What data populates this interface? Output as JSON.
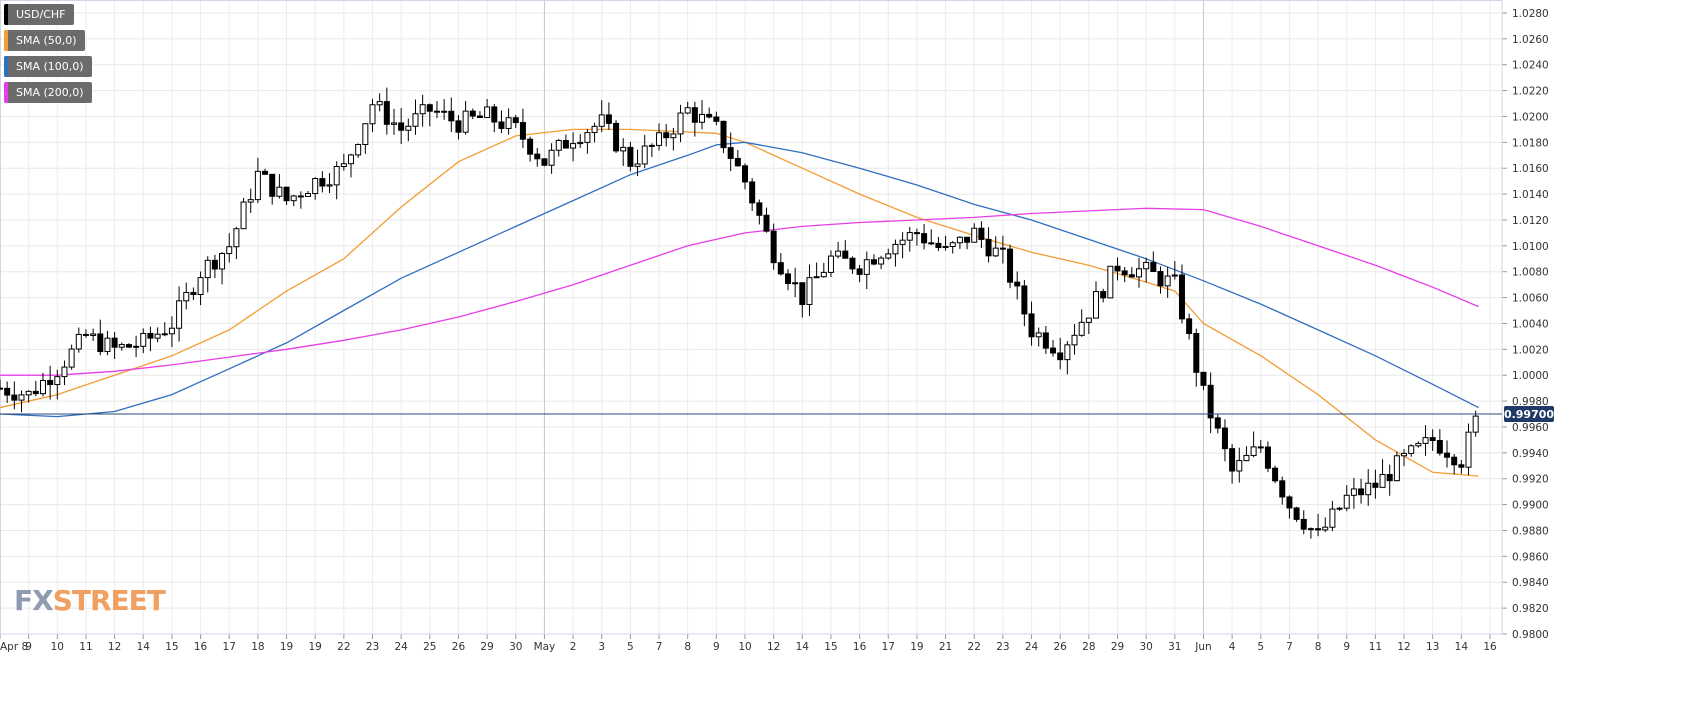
{
  "legend": [
    {
      "label": "USD/CHF",
      "color": "#000000"
    },
    {
      "label": "SMA (50,0)",
      "color": "#f39c33"
    },
    {
      "label": "SMA (100,0)",
      "color": "#2f6fc0"
    },
    {
      "label": "SMA (200,0)",
      "color": "#e83de8"
    }
  ],
  "brand": {
    "part1": "FX",
    "part2": "STREET"
  },
  "chart_data": {
    "type": "candlestick",
    "symbol": "USD/CHF",
    "ylim": [
      0.98,
      1.029
    ],
    "y_ticks": [
      "1.0280",
      "1.0260",
      "1.0240",
      "1.0220",
      "1.0200",
      "1.0180",
      "1.0160",
      "1.0140",
      "1.0120",
      "1.0100",
      "1.0080",
      "1.0060",
      "1.0040",
      "1.0020",
      "1.0000",
      "0.9980",
      "0.9960",
      "0.9940",
      "0.9920",
      "0.9900",
      "0.9880",
      "0.9860",
      "0.9840",
      "0.9820",
      "0.9800"
    ],
    "x_ticks": [
      {
        "label": "Apr 8",
        "i": 0
      },
      {
        "label": "9",
        "i": 1
      },
      {
        "label": "10",
        "i": 2
      },
      {
        "label": "11",
        "i": 3
      },
      {
        "label": "12",
        "i": 4
      },
      {
        "label": "14",
        "i": 5
      },
      {
        "label": "15",
        "i": 6
      },
      {
        "label": "16",
        "i": 7
      },
      {
        "label": "17",
        "i": 8
      },
      {
        "label": "18",
        "i": 9
      },
      {
        "label": "19",
        "i": 10
      },
      {
        "label": "19",
        "i": 11
      },
      {
        "label": "22",
        "i": 12
      },
      {
        "label": "23",
        "i": 13
      },
      {
        "label": "24",
        "i": 14
      },
      {
        "label": "25",
        "i": 15
      },
      {
        "label": "26",
        "i": 16
      },
      {
        "label": "29",
        "i": 17
      },
      {
        "label": "30",
        "i": 18
      },
      {
        "label": "May",
        "i": 19
      },
      {
        "label": "2",
        "i": 20
      },
      {
        "label": "3",
        "i": 21
      },
      {
        "label": "5",
        "i": 22
      },
      {
        "label": "7",
        "i": 23
      },
      {
        "label": "8",
        "i": 24
      },
      {
        "label": "9",
        "i": 25
      },
      {
        "label": "10",
        "i": 26
      },
      {
        "label": "12",
        "i": 27
      },
      {
        "label": "14",
        "i": 28
      },
      {
        "label": "15",
        "i": 29
      },
      {
        "label": "16",
        "i": 30
      },
      {
        "label": "17",
        "i": 31
      },
      {
        "label": "19",
        "i": 32
      },
      {
        "label": "21",
        "i": 33
      },
      {
        "label": "22",
        "i": 34
      },
      {
        "label": "23",
        "i": 35
      },
      {
        "label": "24",
        "i": 36
      },
      {
        "label": "26",
        "i": 37
      },
      {
        "label": "28",
        "i": 38
      },
      {
        "label": "29",
        "i": 39
      },
      {
        "label": "30",
        "i": 40
      },
      {
        "label": "31",
        "i": 41
      },
      {
        "label": "Jun",
        "i": 42
      },
      {
        "label": "4",
        "i": 43
      },
      {
        "label": "5",
        "i": 44
      },
      {
        "label": "7",
        "i": 45
      },
      {
        "label": "8",
        "i": 46
      },
      {
        "label": "9",
        "i": 47
      },
      {
        "label": "11",
        "i": 48
      },
      {
        "label": "12",
        "i": 49
      },
      {
        "label": "13",
        "i": 50
      },
      {
        "label": "14",
        "i": 51
      },
      {
        "label": "16",
        "i": 52
      }
    ],
    "major_gridline_ticks": [
      19,
      42
    ],
    "current_price": {
      "label": "0.99700",
      "value": 0.997
    },
    "price_path": [
      [
        0,
        0.999
      ],
      [
        1,
        0.9985
      ],
      [
        2,
        1.0005
      ],
      [
        3,
        1.003
      ],
      [
        4,
        1.002
      ],
      [
        5,
        1.0025
      ],
      [
        6,
        1.004
      ],
      [
        7,
        1.008
      ],
      [
        8,
        1.01
      ],
      [
        9,
        1.0155
      ],
      [
        10,
        1.0135
      ],
      [
        11,
        1.015
      ],
      [
        12,
        1.016
      ],
      [
        13,
        1.021
      ],
      [
        14,
        1.019
      ],
      [
        15,
        1.0205
      ],
      [
        16,
        1.0195
      ],
      [
        17,
        1.02
      ],
      [
        18,
        1.019
      ],
      [
        19,
        1.0165
      ],
      [
        20,
        1.0185
      ],
      [
        21,
        1.0195
      ],
      [
        22,
        1.0165
      ],
      [
        23,
        1.018
      ],
      [
        24,
        1.0205
      ],
      [
        25,
        1.019
      ],
      [
        26,
        1.015
      ],
      [
        27,
        1.0095
      ],
      [
        28,
        1.006
      ],
      [
        29,
        1.009
      ],
      [
        30,
        1.0085
      ],
      [
        31,
        1.01
      ],
      [
        32,
        1.011
      ],
      [
        33,
        1.0095
      ],
      [
        34,
        1.011
      ],
      [
        35,
        1.009
      ],
      [
        36,
        1.0035
      ],
      [
        37,
        1.002
      ],
      [
        38,
        1.005
      ],
      [
        39,
        1.0085
      ],
      [
        40,
        1.008
      ],
      [
        41,
        1.007
      ],
      [
        42,
        0.9985
      ],
      [
        43,
        0.9925
      ],
      [
        44,
        0.9945
      ],
      [
        45,
        0.99
      ],
      [
        46,
        0.9875
      ],
      [
        47,
        0.9905
      ],
      [
        48,
        0.9915
      ],
      [
        49,
        0.9935
      ],
      [
        50,
        0.995
      ],
      [
        51,
        0.9935
      ],
      [
        51.6,
        0.997
      ]
    ],
    "series": [
      {
        "name": "SMA (50,0)",
        "color": "#f39c33",
        "points": [
          [
            0,
            0.9975
          ],
          [
            2,
            0.9985
          ],
          [
            4,
            1.0
          ],
          [
            6,
            1.0015
          ],
          [
            8,
            1.0035
          ],
          [
            10,
            1.0065
          ],
          [
            12,
            1.009
          ],
          [
            14,
            1.013
          ],
          [
            16,
            1.0165
          ],
          [
            18,
            1.0185
          ],
          [
            20,
            1.019
          ],
          [
            22,
            1.019
          ],
          [
            24,
            1.0188
          ],
          [
            25,
            1.0187
          ],
          [
            26,
            1.018
          ],
          [
            28,
            1.016
          ],
          [
            30,
            1.014
          ],
          [
            32,
            1.0122
          ],
          [
            34,
            1.0108
          ],
          [
            36,
            1.0095
          ],
          [
            38,
            1.0085
          ],
          [
            40,
            1.0072
          ],
          [
            41,
            1.0065
          ],
          [
            42,
            1.004
          ],
          [
            44,
            1.0015
          ],
          [
            46,
            0.9985
          ],
          [
            48,
            0.995
          ],
          [
            50,
            0.9925
          ],
          [
            51.6,
            0.9922
          ]
        ]
      },
      {
        "name": "SMA (100,0)",
        "color": "#2f6fc0",
        "points": [
          [
            0,
            0.997
          ],
          [
            2,
            0.9968
          ],
          [
            4,
            0.9972
          ],
          [
            6,
            0.9985
          ],
          [
            8,
            1.0005
          ],
          [
            10,
            1.0025
          ],
          [
            12,
            1.005
          ],
          [
            14,
            1.0075
          ],
          [
            16,
            1.0095
          ],
          [
            18,
            1.0115
          ],
          [
            20,
            1.0135
          ],
          [
            22,
            1.0155
          ],
          [
            24,
            1.017
          ],
          [
            25,
            1.0178
          ],
          [
            26,
            1.018
          ],
          [
            28,
            1.0172
          ],
          [
            30,
            1.016
          ],
          [
            32,
            1.0147
          ],
          [
            34,
            1.0132
          ],
          [
            36,
            1.012
          ],
          [
            38,
            1.0105
          ],
          [
            40,
            1.009
          ],
          [
            42,
            1.0073
          ],
          [
            44,
            1.0055
          ],
          [
            46,
            1.0035
          ],
          [
            48,
            1.0015
          ],
          [
            50,
            0.9993
          ],
          [
            51.6,
            0.9975
          ]
        ]
      },
      {
        "name": "SMA (200,0)",
        "color": "#e83de8",
        "points": [
          [
            0,
            1.0
          ],
          [
            2,
            1.0
          ],
          [
            4,
            1.0003
          ],
          [
            6,
            1.0008
          ],
          [
            8,
            1.0014
          ],
          [
            10,
            1.002
          ],
          [
            12,
            1.0027
          ],
          [
            14,
            1.0035
          ],
          [
            16,
            1.0045
          ],
          [
            18,
            1.0057
          ],
          [
            20,
            1.007
          ],
          [
            22,
            1.0085
          ],
          [
            24,
            1.01
          ],
          [
            26,
            1.011
          ],
          [
            28,
            1.0115
          ],
          [
            30,
            1.0118
          ],
          [
            32,
            1.012
          ],
          [
            34,
            1.0122
          ],
          [
            36,
            1.0125
          ],
          [
            38,
            1.0127
          ],
          [
            40,
            1.0129
          ],
          [
            42,
            1.0128
          ],
          [
            44,
            1.0115
          ],
          [
            46,
            1.01
          ],
          [
            48,
            1.0085
          ],
          [
            50,
            1.0068
          ],
          [
            51.6,
            1.0053
          ]
        ]
      }
    ]
  }
}
